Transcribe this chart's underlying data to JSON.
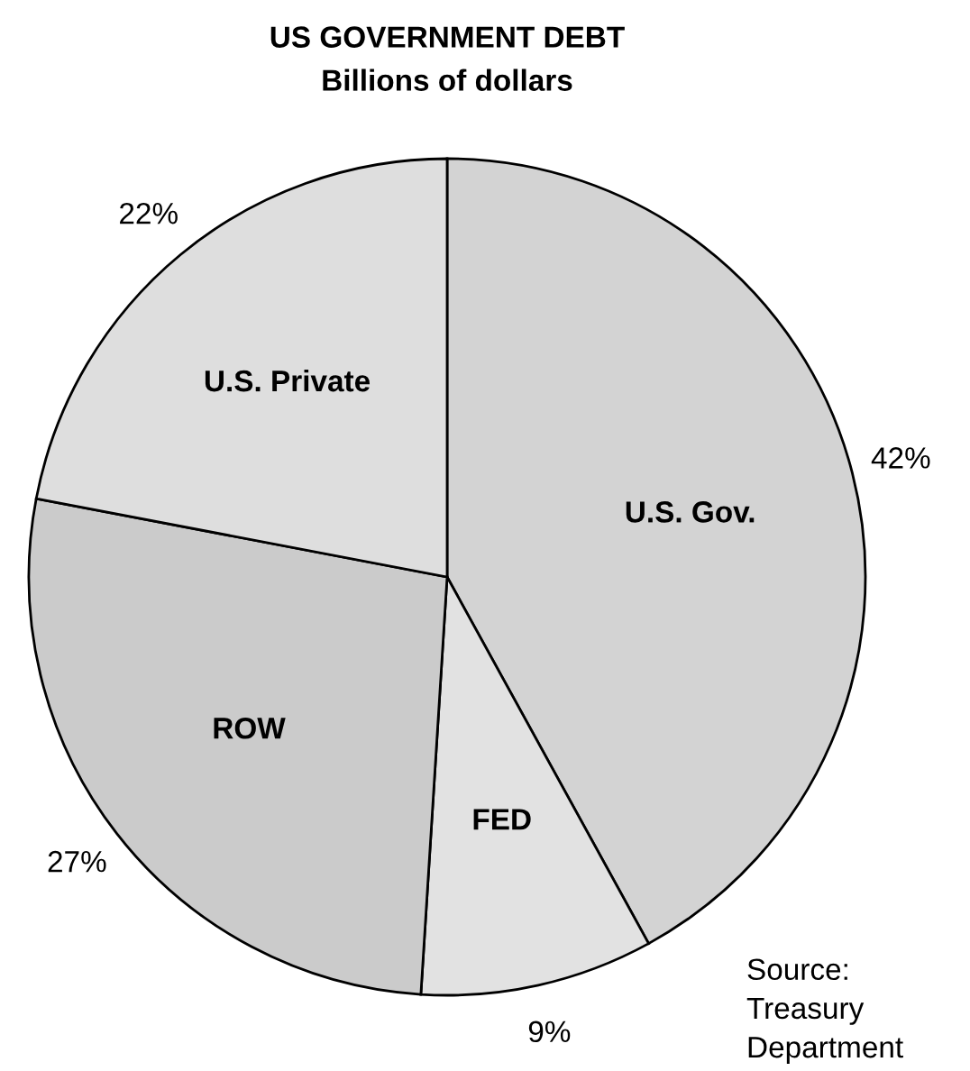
{
  "chart_data": {
    "type": "pie",
    "title": "US GOVERNMENT DEBT",
    "subtitle": "Billions of dollars",
    "categories": [
      "U.S. Gov.",
      "FED",
      "ROW",
      "U.S. Private"
    ],
    "values": [
      42,
      9,
      27,
      22
    ],
    "value_labels": [
      "42%",
      "9%",
      "27%",
      "22%"
    ],
    "colors": [
      "#d3d3d3",
      "#e2e2e2",
      "#cbcbcb",
      "#dedede"
    ],
    "annotations": [
      "Source:\nTreasury\nDepartment"
    ],
    "legend": false
  }
}
